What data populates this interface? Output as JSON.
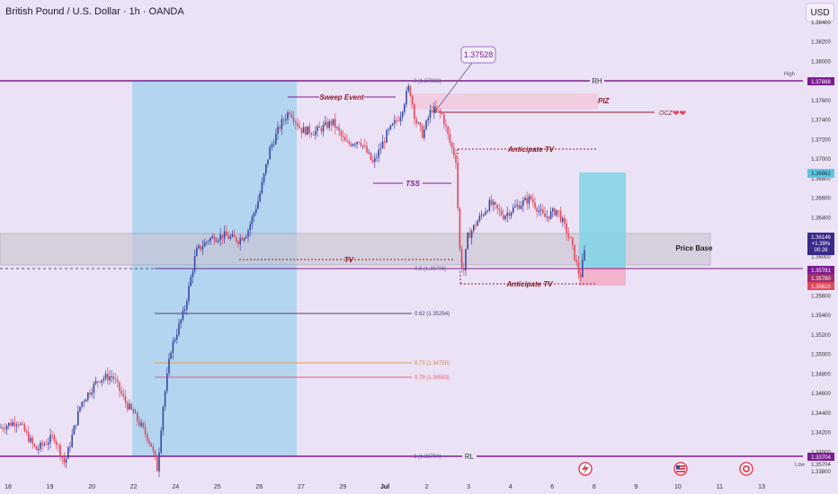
{
  "header": {
    "title": "British Pound / U.S. Dollar · 1h · OANDA",
    "currency": "USD"
  },
  "colors": {
    "bg": "#ece2f6",
    "up": "#3a49a0",
    "down": "#e0485c",
    "zone_blue": "#a9d2ee",
    "rh_line": "#7a1c91",
    "label_dark": "#8b1e2c"
  },
  "chart_data": {
    "type": "candlestick",
    "symbol": "GBPUSD",
    "timeframe": "1h",
    "ylim": [
      1.3357,
      1.3863
    ],
    "y_ticks": [
      "1.38400",
      "1.38200",
      "1.38000",
      "1.37800",
      "1.37600",
      "1.37400",
      "1.37200",
      "1.37000",
      "1.36800",
      "1.36600",
      "1.36400",
      "1.36200",
      "1.36000",
      "1.35800",
      "1.35600",
      "1.35400",
      "1.35200",
      "1.35000",
      "1.34800",
      "1.34600",
      "1.34400",
      "1.34200",
      "1.34000",
      "1.33800"
    ],
    "x_ticks": [
      "18",
      "19",
      "20",
      "22",
      "24",
      "25",
      "26",
      "27",
      "29",
      "Jul",
      "2",
      "3",
      "4",
      "6",
      "8",
      "9",
      "10",
      "11",
      "13"
    ],
    "price_path": [
      {
        "x": 0,
        "y": 1.3425
      },
      {
        "x": 20,
        "y": 1.3432
      },
      {
        "x": 40,
        "y": 1.3402
      },
      {
        "x": 60,
        "y": 1.3416
      },
      {
        "x": 72,
        "y": 1.3388
      },
      {
        "x": 90,
        "y": 1.345
      },
      {
        "x": 110,
        "y": 1.3475
      },
      {
        "x": 125,
        "y": 1.3478
      },
      {
        "x": 140,
        "y": 1.345
      },
      {
        "x": 148,
        "y": 1.344
      },
      {
        "x": 160,
        "y": 1.3422
      },
      {
        "x": 168,
        "y": 1.3408
      },
      {
        "x": 175,
        "y": 1.3382
      },
      {
        "x": 181,
        "y": 1.3445
      },
      {
        "x": 190,
        "y": 1.3505
      },
      {
        "x": 205,
        "y": 1.3545
      },
      {
        "x": 218,
        "y": 1.3605
      },
      {
        "x": 232,
        "y": 1.3618
      },
      {
        "x": 248,
        "y": 1.3622
      },
      {
        "x": 265,
        "y": 1.3617
      },
      {
        "x": 275,
        "y": 1.3625
      },
      {
        "x": 288,
        "y": 1.366
      },
      {
        "x": 300,
        "y": 1.371
      },
      {
        "x": 312,
        "y": 1.3735
      },
      {
        "x": 322,
        "y": 1.375
      },
      {
        "x": 335,
        "y": 1.373
      },
      {
        "x": 350,
        "y": 1.3728
      },
      {
        "x": 370,
        "y": 1.3738
      },
      {
        "x": 385,
        "y": 1.3715
      },
      {
        "x": 400,
        "y": 1.372
      },
      {
        "x": 415,
        "y": 1.3695
      },
      {
        "x": 430,
        "y": 1.3725
      },
      {
        "x": 445,
        "y": 1.3745
      },
      {
        "x": 455,
        "y": 1.3775
      },
      {
        "x": 462,
        "y": 1.374
      },
      {
        "x": 470,
        "y": 1.3725
      },
      {
        "x": 480,
        "y": 1.3752
      },
      {
        "x": 492,
        "y": 1.3745
      },
      {
        "x": 500,
        "y": 1.3718
      },
      {
        "x": 507,
        "y": 1.37
      },
      {
        "x": 511,
        "y": 1.361
      },
      {
        "x": 515,
        "y": 1.358
      },
      {
        "x": 520,
        "y": 1.362
      },
      {
        "x": 530,
        "y": 1.3635
      },
      {
        "x": 545,
        "y": 1.3655
      },
      {
        "x": 560,
        "y": 1.3642
      },
      {
        "x": 575,
        "y": 1.3652
      },
      {
        "x": 590,
        "y": 1.366
      },
      {
        "x": 605,
        "y": 1.364
      },
      {
        "x": 620,
        "y": 1.3648
      },
      {
        "x": 635,
        "y": 1.3615
      },
      {
        "x": 645,
        "y": 1.3578
      },
      {
        "x": 652,
        "y": 1.3615
      }
    ],
    "levels": [
      {
        "name": "RH",
        "price": 1.37888,
        "fib_label": "0 (1.37888)"
      },
      {
        "name": "0.5",
        "price": 1.35796,
        "fib_label": "0.5 (1.35796)"
      },
      {
        "name": "0.62",
        "price": 1.35294,
        "fib_label": "0.62 (1.35294)"
      },
      {
        "name": "0.75",
        "price": 1.3475,
        "fib_label": "0.75 (1.34750)"
      },
      {
        "name": "0.79",
        "price": 1.34583,
        "fib_label": "0.79 (1.34583)"
      },
      {
        "name": "RL",
        "price": 1.33704,
        "fib_label": "1 (1.33704)"
      }
    ],
    "annotations": {
      "callout": "1.37528",
      "sweep": "Sweep Event",
      "piz": "PIZ",
      "ocz": "OCZ",
      "anticipate_up": "Anticipate  TV",
      "tss": "TSS",
      "tv": "TV",
      "price_base": "Price Base",
      "anticipate_down": "Anticipate TV",
      "rh": "RH",
      "rl": "RL"
    },
    "price_labels": {
      "high_label": "High",
      "high": "1.37888",
      "target": "1.36862",
      "last": "1.36146",
      "change": "+1.39%",
      "countdown": "00:28",
      "l1": "1.35781",
      "l2": "1.35780",
      "l3": "1.35610",
      "rl_price": "1.33704",
      "low_label": "Low",
      "low": "1.35704"
    }
  }
}
